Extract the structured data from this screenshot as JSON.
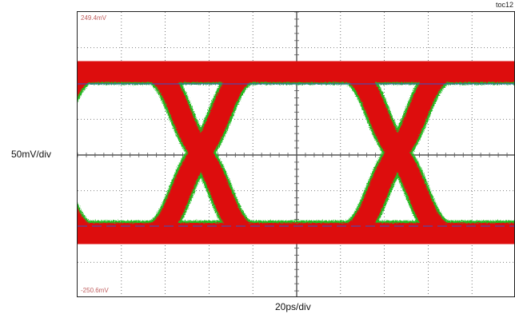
{
  "figure_id": "toc12",
  "chart_data": {
    "type": "eye-diagram",
    "xlabel": "20ps/div",
    "ylabel": "50mV/div",
    "top_reference": "249.4mV",
    "bottom_reference": "-250.6mV",
    "x_divisions": 10,
    "y_divisions": 8,
    "grid": true,
    "colors": {
      "trace": "#dd1111",
      "trace_edge": "#22bb22",
      "markers": "#3355cc",
      "grid": "#555555"
    }
  }
}
